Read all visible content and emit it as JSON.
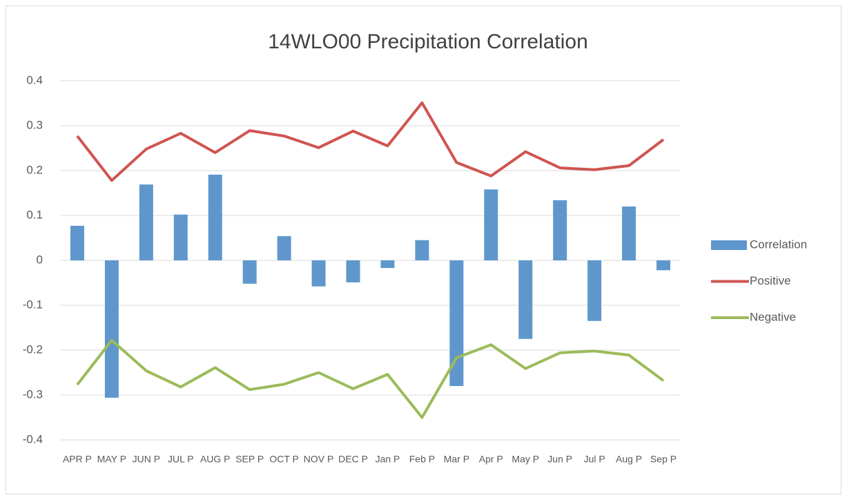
{
  "chart_data": {
    "type": "bar-line",
    "title": "14WLO00 Precipitation Correlation",
    "categories": [
      "APR P",
      "MAY P",
      "JUN P",
      "JUL P",
      "AUG P",
      "SEP P",
      "OCT P",
      "NOV P",
      "DEC P",
      "Jan P",
      "Feb P",
      "Mar P",
      "Apr P",
      "May P",
      "Jun P",
      "Jul P",
      "Aug P",
      "Sep P"
    ],
    "series": [
      {
        "name": "Correlation",
        "type": "bar",
        "color": "#5f97cd",
        "values": [
          0.077,
          -0.306,
          0.169,
          0.102,
          0.191,
          -0.052,
          0.054,
          -0.058,
          -0.049,
          -0.017,
          0.045,
          -0.28,
          0.158,
          -0.175,
          0.134,
          -0.135,
          0.12,
          -0.022
        ]
      },
      {
        "name": "Positive",
        "type": "line",
        "color": "#cf5450",
        "values": [
          0.277,
          0.178,
          0.248,
          0.283,
          0.24,
          0.289,
          0.277,
          0.251,
          0.288,
          0.255,
          0.351,
          0.218,
          0.188,
          0.242,
          0.206,
          0.202,
          0.211,
          0.269
        ]
      },
      {
        "name": "Negative",
        "type": "line",
        "color": "#9bbb59",
        "values": [
          -0.277,
          -0.178,
          -0.246,
          -0.282,
          -0.239,
          -0.288,
          -0.276,
          -0.25,
          -0.286,
          -0.254,
          -0.35,
          -0.217,
          -0.188,
          -0.241,
          -0.206,
          -0.202,
          -0.211,
          -0.268
        ]
      }
    ],
    "ylim": [
      -0.4,
      0.4
    ],
    "yticks": [
      -0.4,
      -0.3,
      -0.2,
      -0.1,
      0,
      0.1,
      0.2,
      0.3,
      0.4
    ],
    "grid": true,
    "legend": "right"
  }
}
